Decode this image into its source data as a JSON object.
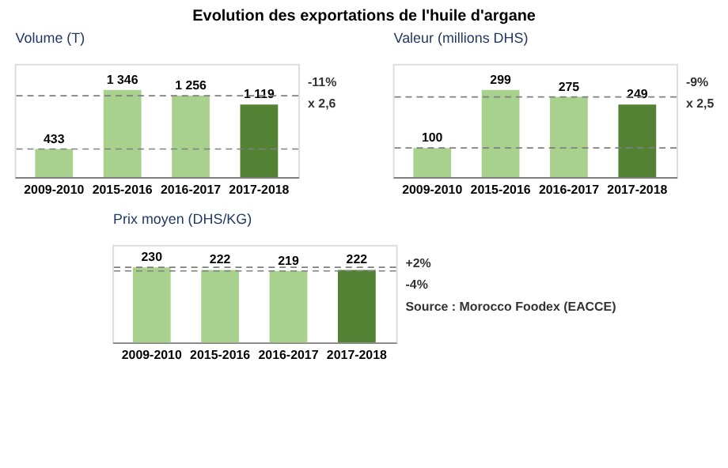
{
  "chart_data": [
    {
      "type": "bar",
      "title": "Evolution des exportations de l'huile d'argane",
      "ylabel": "Volume (T)",
      "categories": [
        "2009-2010",
        "2015-2016",
        "2016-2017",
        "2017-2018"
      ],
      "values": [
        433,
        1346,
        1256,
        1119
      ],
      "value_labels": [
        "433",
        "1 346",
        "1 256",
        "1 119"
      ],
      "colors": [
        "#a9d18e",
        "#a9d18e",
        "#a9d18e",
        "#548235"
      ],
      "ref_lines": [
        {
          "axis": "y",
          "value": 433,
          "line_style": "dashed",
          "color": "#7f7f7f"
        },
        {
          "axis": "y",
          "value": 1256,
          "line_style": "dashed",
          "color": "#7f7f7f"
        }
      ],
      "annotations": [
        "-11%",
        "x 2,6"
      ]
    },
    {
      "type": "bar",
      "ylabel": "Valeur (millions DHS)",
      "categories": [
        "2009-2010",
        "2015-2016",
        "2016-2017",
        "2017-2018"
      ],
      "values": [
        100,
        299,
        275,
        249
      ],
      "data_labels": true,
      "colors": [
        "#a9d18e",
        "#a9d18e",
        "#a9d18e",
        "#548235"
      ],
      "ref_lines": [
        {
          "axis": "y",
          "value": 100,
          "line_style": "dashed",
          "color": "#7f7f7f"
        },
        {
          "axis": "y",
          "value": 275,
          "line_style": "dashed",
          "color": "#7f7f7f"
        }
      ],
      "annotations": [
        "-9%",
        "x 2,5"
      ]
    },
    {
      "type": "bar",
      "ylabel": "Prix moyen (DHS/KG)",
      "categories": [
        "2009-2010",
        "2015-2016",
        "2016-2017",
        "2017-2018"
      ],
      "values": [
        230,
        222,
        219,
        222
      ],
      "data_labels": true,
      "colors": [
        "#a9d18e",
        "#a9d18e",
        "#a9d18e",
        "#548235"
      ],
      "ref_lines": [
        {
          "axis": "y",
          "value": 230,
          "line_style": "dashed",
          "color": "#7f7f7f"
        },
        {
          "axis": "y",
          "value": 219,
          "line_style": "dashed",
          "color": "#7f7f7f"
        }
      ],
      "annotations": [
        "+2%",
        "-4%",
        "Source : Morocco Foodex (EACCE)"
      ]
    }
  ]
}
